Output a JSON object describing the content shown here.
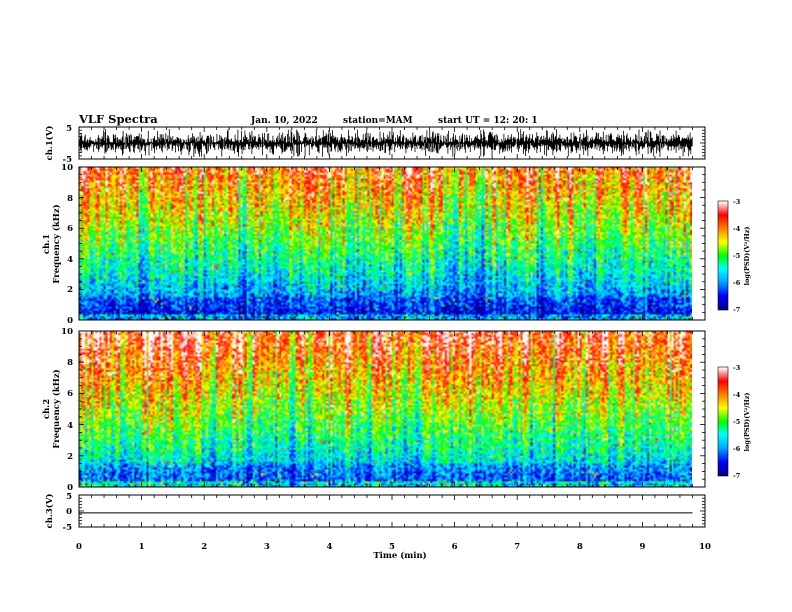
{
  "header": {
    "title": "VLF Spectra",
    "date": "Jan. 10, 2022",
    "station": "station=MAM",
    "start": "start UT =  12: 20: 1"
  },
  "chart_data": {
    "type": "heatmap",
    "x_axis": {
      "label": "Time (min)",
      "range": [
        0,
        10
      ],
      "ticks": [
        "0",
        "1",
        "2",
        "3",
        "4",
        "5",
        "6",
        "7",
        "8",
        "9",
        "10"
      ]
    },
    "panels": [
      {
        "id": "ch1-waveform",
        "kind": "waveform",
        "ylabel": "ch.1(V)",
        "ylim": [
          -5,
          5
        ],
        "ticks": [
          "5",
          "-5"
        ]
      },
      {
        "id": "ch1-spectrogram",
        "kind": "spectrogram",
        "ylabel_top": "ch.1",
        "ylabel": "Frequency (kHz)",
        "ylim": [
          0,
          10
        ],
        "ticks": [
          "0",
          "2",
          "4",
          "6",
          "8",
          "10"
        ],
        "data_time_end": 9.8,
        "colorbar": {
          "label": "log(PSD)(V²/Hz)",
          "range": [
            -7,
            -3
          ],
          "ticks": [
            "-3",
            "-4",
            "-5",
            "-6",
            "-7"
          ]
        }
      },
      {
        "id": "ch2-spectrogram",
        "kind": "spectrogram",
        "ylabel_top": "ch.2",
        "ylabel": "Frequency (kHz)",
        "ylim": [
          0,
          10
        ],
        "ticks": [
          "0",
          "2",
          "4",
          "6",
          "8",
          "10"
        ],
        "data_time_end": 9.8,
        "colorbar": {
          "label": "log(PSD)(V²/Hz)",
          "range": [
            -7,
            -3
          ],
          "ticks": [
            "-3",
            "-4",
            "-5",
            "-6",
            "-7"
          ]
        }
      },
      {
        "id": "ch3-waveform",
        "kind": "waveform",
        "ylabel": "ch.3(V)",
        "ylim": [
          -5,
          5
        ],
        "ticks": [
          "5",
          "0",
          "-5"
        ],
        "trace_value": -0.6
      }
    ],
    "colormap": [
      "#000088",
      "#0000ff",
      "#00a0ff",
      "#00ffff",
      "#00ff00",
      "#ffff00",
      "#ff8000",
      "#ff0000",
      "#ffffff"
    ]
  }
}
